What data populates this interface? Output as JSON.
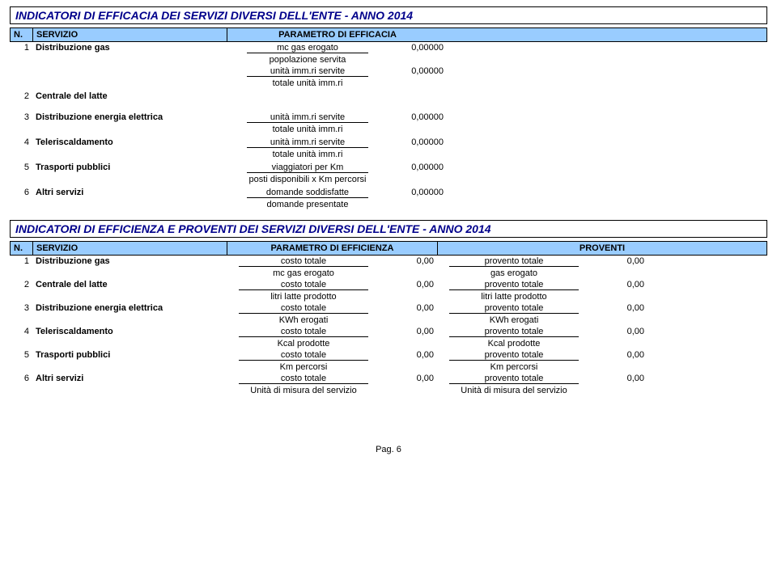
{
  "efficacia": {
    "title": "INDICATORI DI EFFICACIA DEI SERVIZI DIVERSI DELL'ENTE - ANNO 2014",
    "headers": {
      "n": "N.",
      "servizio": "SERVIZIO",
      "parametro": "PARAMETRO DI EFFICACIA"
    },
    "rows": [
      {
        "n": "1",
        "servizio": "Distribuzione gas",
        "params": [
          {
            "num": "mc gas erogato",
            "den": "popolazione servita",
            "val": "0,00000"
          },
          {
            "num": "unità imm.ri servite",
            "den": "totale unità imm.ri",
            "val": "0,00000"
          }
        ]
      },
      {
        "n": "2",
        "servizio": "Centrale del latte",
        "params": []
      },
      {
        "n": "3",
        "servizio": "Distribuzione energia elettrica",
        "params": [
          {
            "num": "unità imm.ri servite",
            "den": "totale unità imm.ri",
            "val": "0,00000"
          }
        ]
      },
      {
        "n": "4",
        "servizio": "Teleriscaldamento",
        "params": [
          {
            "num": "unità imm.ri servite",
            "den": "totale unità imm.ri",
            "val": "0,00000"
          }
        ]
      },
      {
        "n": "5",
        "servizio": "Trasporti pubblici",
        "params": [
          {
            "num": "viaggiatori per Km",
            "den": "posti disponibili x Km percorsi",
            "val": "0,00000"
          }
        ]
      },
      {
        "n": "6",
        "servizio": "Altri servizi",
        "params": [
          {
            "num": "domande soddisfatte",
            "den": "domande presentate",
            "val": "0,00000"
          }
        ]
      }
    ]
  },
  "efficienza": {
    "title": "INDICATORI DI EFFICIENZA E PROVENTI DEI SERVIZI DIVERSI DELL'ENTE - ANNO 2014",
    "headers": {
      "n": "N.",
      "servizio": "SERVIZIO",
      "parametro": "PARAMETRO DI EFFICIENZA",
      "proventi": "PROVENTI"
    },
    "rows": [
      {
        "n": "1",
        "servizio": "Distribuzione gas",
        "p1_num": "costo totale",
        "p1_den": "mc gas erogato",
        "v1": "0,00",
        "p2_num": "provento totale",
        "p2_den": "gas erogato",
        "v2": "0,00"
      },
      {
        "n": "2",
        "servizio": "Centrale del latte",
        "p1_num": "costo totale",
        "p1_den": "litri latte prodotto",
        "v1": "0,00",
        "p2_num": "provento totale",
        "p2_den": "litri latte prodotto",
        "v2": "0,00"
      },
      {
        "n": "3",
        "servizio": "Distribuzione energia elettrica",
        "p1_num": "costo totale",
        "p1_den": "KWh erogati",
        "v1": "0,00",
        "p2_num": "provento totale",
        "p2_den": "KWh erogati",
        "v2": "0,00"
      },
      {
        "n": "4",
        "servizio": "Teleriscaldamento",
        "p1_num": "costo totale",
        "p1_den": "Kcal prodotte",
        "v1": "0,00",
        "p2_num": "provento totale",
        "p2_den": "Kcal prodotte",
        "v2": "0,00"
      },
      {
        "n": "5",
        "servizio": "Trasporti pubblici",
        "p1_num": "costo totale",
        "p1_den": "Km percorsi",
        "v1": "0,00",
        "p2_num": "provento totale",
        "p2_den": "Km percorsi",
        "v2": "0,00"
      },
      {
        "n": "6",
        "servizio": "Altri servizi",
        "p1_num": "costo totale",
        "p1_den": "Unità di misura del servizio",
        "v1": "0,00",
        "p2_num": "provento totale",
        "p2_den": "Unità di misura del servizio",
        "v2": "0,00"
      }
    ]
  },
  "footer": "Pag. 6",
  "colors": {
    "title_text": "#00008b",
    "header_bg": "#99ccff",
    "border": "#000000",
    "background": "#ffffff"
  }
}
